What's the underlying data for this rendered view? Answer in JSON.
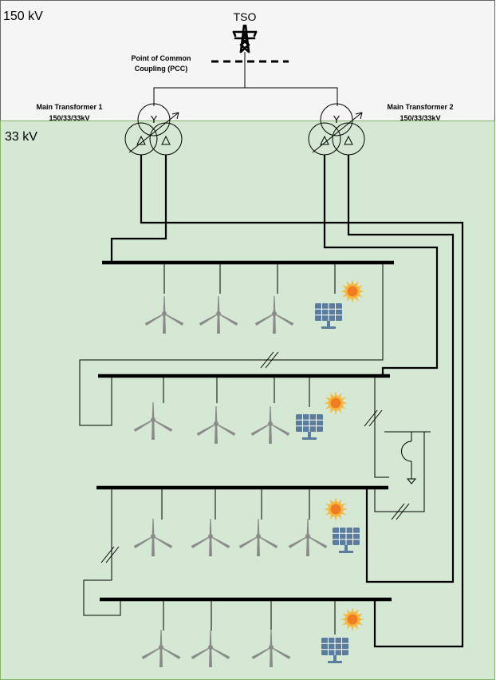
{
  "zones": {
    "hv_label": "150 kV",
    "mv_label": "33 kV",
    "hv_color": "#f5f5f5",
    "mv_color": "#d5e8d4",
    "mv_border": "#82b366"
  },
  "grid": {
    "tso_label": "TSO",
    "pcc_label_line1": "Point of Common",
    "pcc_label_line2": "Coupling (PCC)"
  },
  "transformers": [
    {
      "name": "Main Transformer 1",
      "rating": "150/33/33kV"
    },
    {
      "name": "Main Transformer 2",
      "rating": "150/33/33kV"
    }
  ],
  "symbols": {
    "star_winding": "Y",
    "tso_icon": "transmission-tower-icon",
    "wind_icon": "wind-turbine-icon",
    "solar_icon": "solar-panel-icon",
    "sun_icon": "sun-icon"
  },
  "colors": {
    "line": "#000000",
    "turbine": "#8a8a8a",
    "panel": "#5b7d9d",
    "sun_outer": "#f4b942",
    "sun_inner": "#f07d22"
  },
  "busbars": [
    {
      "id": "bus-1",
      "wind_turbines": 3,
      "solar_plants": 1
    },
    {
      "id": "bus-2",
      "wind_turbines": 3,
      "solar_plants": 1
    },
    {
      "id": "bus-3",
      "wind_turbines": 4,
      "solar_plants": 1
    },
    {
      "id": "bus-4",
      "wind_turbines": 3,
      "solar_plants": 1
    }
  ]
}
